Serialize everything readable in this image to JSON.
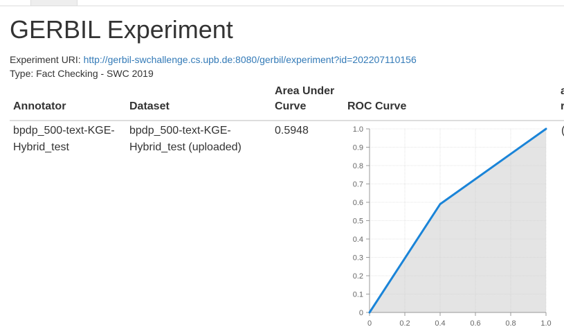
{
  "page": {
    "title": "GERBIL Experiment",
    "uri_label": "Experiment URI:",
    "uri_link": "http://gerbil-swchallenge.cs.upb.de:8080/gerbil/experiment?id=202207110156",
    "type_line": "Type: Fact Checking - SWC 2019"
  },
  "table": {
    "headers": {
      "annotator": "Annotator",
      "dataset": "Dataset",
      "auc_line1": "Area Under",
      "auc_line2": "Curve",
      "roc": "ROC Curve",
      "cut1": "a",
      "cut2": "r"
    },
    "row": {
      "annotator_line1": "bpdp_500-text-KGE-",
      "annotator_line2": "Hybrid_test",
      "dataset_line1": "bpdp_500-text-KGE-",
      "dataset_line2": "Hybrid_test (uploaded)",
      "auc": "0.5948",
      "cut": "("
    }
  },
  "chart_data": {
    "type": "area",
    "x": [
      0,
      0.4,
      1.0
    ],
    "y": [
      0,
      0.59,
      1.0
    ],
    "xlim": [
      0,
      1.0
    ],
    "ylim": [
      0,
      1.0
    ],
    "xticks": [
      "0",
      "0.2",
      "0.4",
      "0.6",
      "0.8",
      "1.0"
    ],
    "yticks": [
      "0",
      "0.1",
      "0.2",
      "0.3",
      "0.4",
      "0.5",
      "0.6",
      "0.7",
      "0.8",
      "0.9",
      "1.0"
    ],
    "grid": true,
    "line_color": "#1a84d8",
    "fill_color": "#e4e4e4"
  }
}
